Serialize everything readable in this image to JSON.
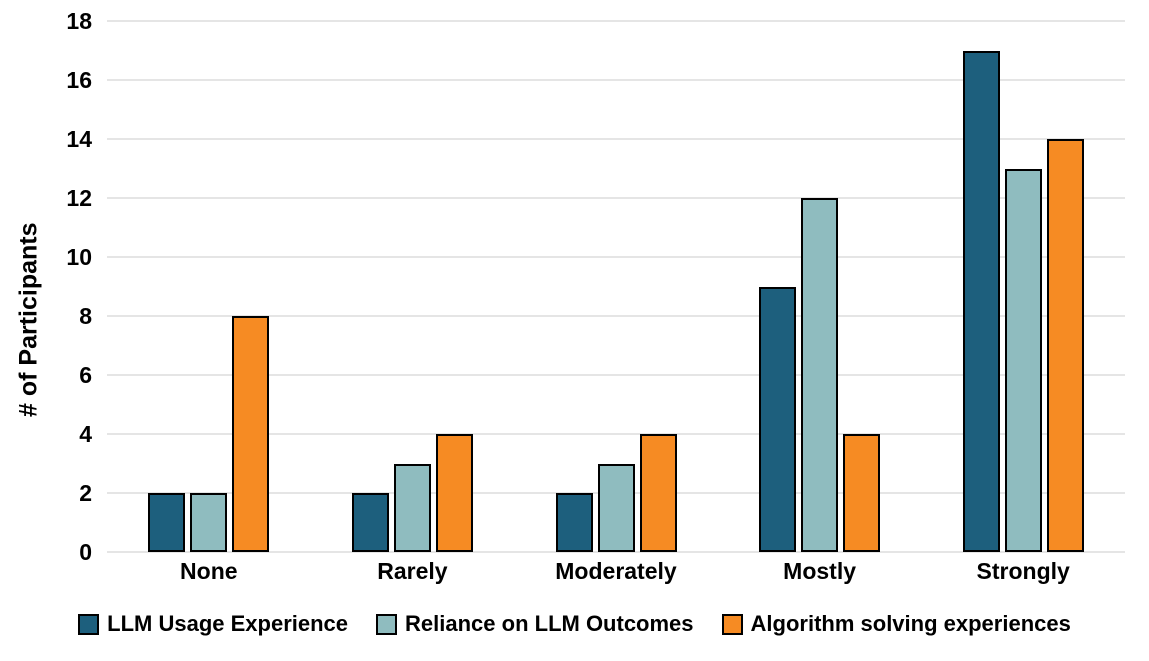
{
  "chart_data": {
    "type": "bar",
    "title": "",
    "categories": [
      "None",
      "Rarely",
      "Moderately",
      "Mostly",
      "Strongly"
    ],
    "series": [
      {
        "name": "LLM Usage Experience",
        "color": "#1D5F7D",
        "values": [
          2,
          2,
          2,
          9,
          17
        ]
      },
      {
        "name": "Reliance on LLM Outcomes",
        "color": "#8FBCBF",
        "values": [
          2,
          3,
          3,
          12,
          13
        ]
      },
      {
        "name": "Algorithm solving experiences",
        "color": "#F68B23",
        "values": [
          8,
          4,
          4,
          4,
          14
        ]
      }
    ],
    "xlabel": "",
    "ylabel": "# of Participants",
    "ylim": [
      0,
      18
    ],
    "yticks": [
      0,
      2,
      4,
      6,
      8,
      10,
      12,
      14,
      16,
      18
    ],
    "grid": true,
    "legend_position": "bottom",
    "bar_border_color": "#000000",
    "gridline_color": "#E5E5E5",
    "background_color": "#FFFFFF",
    "text_color": "#000000"
  }
}
